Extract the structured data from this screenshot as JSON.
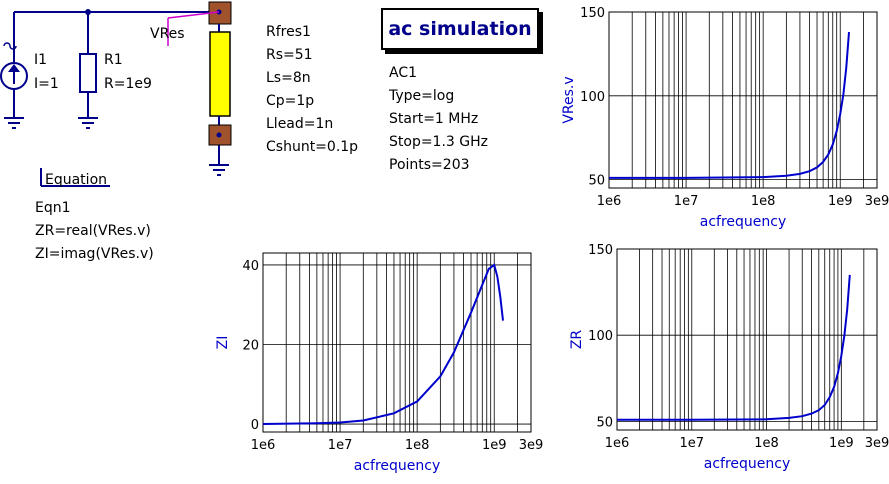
{
  "schematic": {
    "current_source": {
      "name": "I1",
      "value": "I=1"
    },
    "resistor": {
      "name": "R1",
      "value": "R=1e9"
    },
    "wire_label": "VRes",
    "component": {
      "lines": [
        "Rfres1",
        "Rs=51",
        "Ls=8n",
        "Cp=1p",
        "Llead=1n",
        "Cshunt=0.1p"
      ]
    },
    "equation": {
      "header": "Equation",
      "lines": [
        "Eqn1",
        "ZR=real(VRes.v)",
        "ZI=imag(VRes.v)"
      ]
    },
    "simulation": {
      "title": "ac simulation",
      "lines": [
        "AC1",
        "Type=log",
        "Start=1 MHz",
        "Stop=1.3 GHz",
        "Points=203"
      ]
    },
    "colors": {
      "wire": "#00008b",
      "component_fill": "#ffff00",
      "pad": "#a0522d",
      "label_line": "#cc00cc"
    }
  },
  "chart_data": [
    {
      "id": "chart-vres",
      "type": "line",
      "xscale": "log",
      "xlim": [
        1000000,
        3000000000
      ],
      "ylim": [
        45,
        150
      ],
      "xticks": [
        "1e6",
        "1e7",
        "1e8",
        "1e9",
        "3e9"
      ],
      "yticks": [
        50,
        100,
        150
      ],
      "xlabel": "acfrequency",
      "ylabel": "VRes.v",
      "grid": true,
      "color": "#0000cc",
      "x": [
        1000000,
        10000000,
        100000000,
        200000000,
        300000000,
        400000000,
        500000000,
        600000000,
        700000000,
        800000000,
        900000000,
        1000000000,
        1100000000,
        1200000000,
        1300000000
      ],
      "y": [
        51,
        51,
        51.5,
        52.3,
        53.4,
        55,
        57.3,
        60.5,
        65,
        71,
        79,
        89,
        101,
        117,
        138
      ]
    },
    {
      "id": "chart-zi",
      "type": "line",
      "xscale": "log",
      "xlim": [
        1000000,
        3000000000
      ],
      "ylim": [
        -2,
        43
      ],
      "xticks": [
        "1e6",
        "1e7",
        "1e8",
        "1e9",
        "3e9"
      ],
      "yticks": [
        0,
        20,
        40
      ],
      "xlabel": "acfrequency",
      "ylabel": "ZI",
      "grid": true,
      "color": "#0000cc",
      "x": [
        1000000,
        5000000,
        10000000,
        20000000,
        50000000,
        100000000,
        200000000,
        300000000,
        500000000,
        700000000,
        850000000,
        1000000000,
        1100000000,
        1200000000,
        1300000000
      ],
      "y": [
        0,
        0.2,
        0.4,
        0.9,
        2.7,
        5.7,
        12,
        18,
        28,
        35,
        39,
        40,
        37,
        32,
        26
      ]
    },
    {
      "id": "chart-zr",
      "type": "line",
      "xscale": "log",
      "xlim": [
        1000000,
        3000000000
      ],
      "ylim": [
        45,
        150
      ],
      "xticks": [
        "1e6",
        "1e7",
        "1e8",
        "1e9",
        "3e9"
      ],
      "yticks": [
        50,
        100,
        150
      ],
      "xlabel": "acfrequency",
      "ylabel": "ZR",
      "grid": true,
      "color": "#0000cc",
      "x": [
        1000000,
        10000000,
        100000000,
        200000000,
        300000000,
        400000000,
        500000000,
        600000000,
        700000000,
        800000000,
        900000000,
        1000000000,
        1100000000,
        1200000000,
        1300000000
      ],
      "y": [
        51,
        51,
        51.2,
        52,
        53,
        54.5,
        56.5,
        59.5,
        64,
        70,
        78,
        88,
        100,
        115,
        135
      ]
    }
  ]
}
